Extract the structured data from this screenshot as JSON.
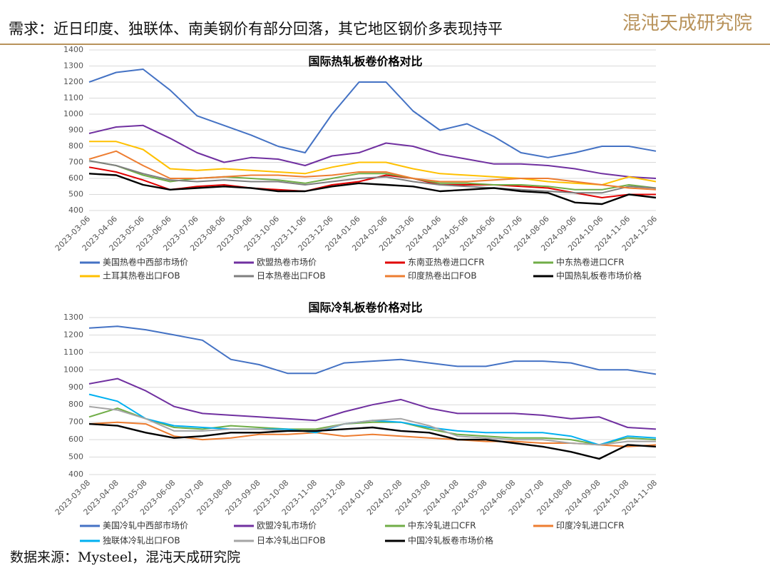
{
  "header": {
    "title": "需求：近日印度、独联体、南美钢价有部分回落，其它地区钢价多表现持平",
    "logo": "混沌天成研究院"
  },
  "footer": "数据来源：Mysteel，混沌天成研究院",
  "chart_data": [
    {
      "type": "line",
      "title": "国际热轧板卷价格对比",
      "categories": [
        "2023-03-06",
        "2023-04-06",
        "2023-05-06",
        "2023-06-06",
        "2023-07-06",
        "2023-08-06",
        "2023-09-06",
        "2023-10-06",
        "2023-11-06",
        "2023-12-06",
        "2024-01-06",
        "2024-02-06",
        "2024-03-06",
        "2024-04-06",
        "2024-05-06",
        "2024-06-06",
        "2024-07-06",
        "2024-08-06",
        "2024-09-06",
        "2024-10-06",
        "2024-11-06",
        "2024-12-06"
      ],
      "ylim": [
        400,
        1400
      ],
      "yticks": [
        400,
        500,
        600,
        700,
        800,
        900,
        1000,
        1100,
        1200,
        1300,
        1400
      ],
      "grid": true,
      "legend": "bottom",
      "series": [
        {
          "name": "美国热卷中西部市场价",
          "color": "#4472c4",
          "values": [
            1200,
            1260,
            1280,
            1150,
            990,
            930,
            870,
            800,
            760,
            1000,
            1200,
            1200,
            1020,
            900,
            940,
            860,
            760,
            730,
            760,
            800,
            800,
            770
          ]
        },
        {
          "name": "欧盟热卷市场价",
          "color": "#7030a0",
          "values": [
            880,
            920,
            930,
            850,
            760,
            700,
            730,
            720,
            680,
            740,
            760,
            820,
            800,
            750,
            720,
            690,
            690,
            680,
            660,
            630,
            610,
            600
          ]
        },
        {
          "name": "东南亚热卷进口CFR",
          "color": "#e00000",
          "values": [
            670,
            640,
            590,
            530,
            550,
            560,
            540,
            530,
            520,
            560,
            580,
            620,
            600,
            560,
            560,
            560,
            550,
            540,
            510,
            480,
            500,
            500
          ]
        },
        {
          "name": "中东热卷进口CFR",
          "color": "#70ad47",
          "values": [
            710,
            680,
            620,
            580,
            600,
            610,
            600,
            590,
            570,
            600,
            630,
            630,
            600,
            570,
            570,
            560,
            560,
            550,
            530,
            530,
            560,
            540
          ]
        },
        {
          "name": "土耳其热卷出口FOB",
          "color": "#ffc000",
          "values": [
            830,
            830,
            780,
            660,
            650,
            660,
            650,
            640,
            630,
            670,
            700,
            700,
            660,
            630,
            620,
            610,
            600,
            580,
            570,
            560,
            610,
            580
          ]
        },
        {
          "name": "日本热卷出口FOB",
          "color": "#7f7f7f",
          "values": [
            710,
            680,
            630,
            590,
            580,
            590,
            580,
            580,
            560,
            580,
            600,
            610,
            580,
            560,
            550,
            540,
            530,
            520,
            510,
            510,
            550,
            540
          ]
        },
        {
          "name": "印度热卷出口FOB",
          "color": "#ed7d31",
          "values": [
            720,
            770,
            680,
            600,
            600,
            610,
            620,
            620,
            610,
            620,
            640,
            640,
            600,
            580,
            580,
            590,
            600,
            600,
            580,
            560,
            540,
            530
          ]
        },
        {
          "name": "中国热轧板卷市场价格",
          "color": "#000000",
          "values": [
            630,
            620,
            560,
            530,
            540,
            550,
            540,
            520,
            520,
            550,
            570,
            560,
            550,
            520,
            530,
            540,
            520,
            510,
            450,
            440,
            500,
            480
          ]
        }
      ]
    },
    {
      "type": "line",
      "title": "国际冷轧板卷价格对比",
      "categories": [
        "2023-03-08",
        "2023-04-08",
        "2023-05-08",
        "2023-06-08",
        "2023-07-08",
        "2023-08-08",
        "2023-09-08",
        "2023-10-08",
        "2023-11-08",
        "2023-12-08",
        "2024-01-08",
        "2024-02-08",
        "2024-03-08",
        "2024-04-08",
        "2024-05-08",
        "2024-06-08",
        "2024-07-08",
        "2024-08-08",
        "2024-09-08",
        "2024-10-08",
        "2024-11-08"
      ],
      "ylim": [
        400,
        1300
      ],
      "yticks": [
        400,
        500,
        600,
        700,
        800,
        900,
        1000,
        1100,
        1200,
        1300
      ],
      "grid": true,
      "legend": "bottom",
      "series": [
        {
          "name": "美国冷轧中西部市场价",
          "color": "#4472c4",
          "values": [
            1240,
            1250,
            1230,
            1200,
            1170,
            1060,
            1030,
            980,
            980,
            1040,
            1050,
            1060,
            1040,
            1020,
            1020,
            1050,
            1050,
            1040,
            1000,
            1000,
            975
          ]
        },
        {
          "name": "欧盟冷轧市场价",
          "color": "#7030a0",
          "values": [
            920,
            950,
            880,
            790,
            750,
            740,
            730,
            720,
            710,
            760,
            800,
            830,
            780,
            750,
            750,
            750,
            740,
            720,
            730,
            670,
            660
          ]
        },
        {
          "name": "中东冷轧进口CFR",
          "color": "#70ad47",
          "values": [
            730,
            780,
            720,
            670,
            660,
            680,
            670,
            660,
            660,
            690,
            700,
            700,
            660,
            630,
            620,
            610,
            610,
            600,
            570,
            610,
            600
          ]
        },
        {
          "name": "印度冷轧进口CFR",
          "color": "#ed7d31",
          "values": [
            690,
            700,
            690,
            620,
            600,
            610,
            630,
            630,
            640,
            620,
            630,
            620,
            610,
            600,
            590,
            590,
            580,
            580,
            570,
            560,
            570
          ]
        },
        {
          "name": "独联体冷轧出口FOB",
          "color": "#00b0f0",
          "values": [
            860,
            820,
            720,
            680,
            670,
            660,
            660,
            660,
            640,
            690,
            710,
            700,
            670,
            650,
            640,
            640,
            640,
            620,
            570,
            620,
            610
          ]
        },
        {
          "name": "日本冷轧出口FOB",
          "color": "#a5a5a5",
          "values": [
            790,
            770,
            720,
            650,
            650,
            660,
            660,
            650,
            650,
            690,
            710,
            720,
            680,
            620,
            610,
            600,
            600,
            580,
            570,
            590,
            590
          ]
        },
        {
          "name": "中国冷轧板卷市场价格",
          "color": "#000000",
          "values": [
            690,
            680,
            640,
            610,
            620,
            640,
            640,
            650,
            650,
            660,
            670,
            650,
            640,
            600,
            600,
            580,
            560,
            530,
            490,
            570,
            560
          ]
        }
      ]
    }
  ]
}
